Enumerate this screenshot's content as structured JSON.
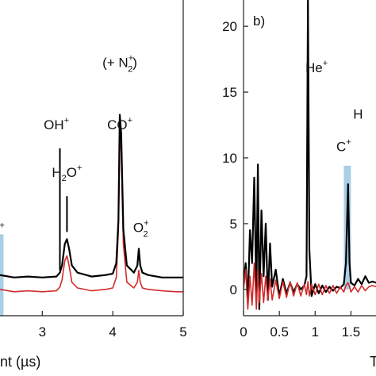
{
  "chart_data": [
    {
      "type": "line",
      "panel_label": "",
      "xlabel": "nt (µs)",
      "ylabel": "",
      "xlim": [
        2.4,
        5.0
      ],
      "ylim": [
        -0.6,
        6.0
      ],
      "x_ticks": [
        "3",
        "4",
        "5"
      ],
      "x_tick_values": [
        3,
        4,
        5
      ],
      "grid": false,
      "legend": "none",
      "colors": {
        "black_series": "#000000",
        "red_series": "#d42a2a",
        "highlight": "#a9cfe6"
      },
      "highlight_x": [
        2.4,
        2.45
      ],
      "series": [
        {
          "color": "#000000",
          "x": [
            2.4,
            2.6,
            2.8,
            3.0,
            3.2,
            3.25,
            3.28,
            3.32,
            3.35,
            3.38,
            3.42,
            3.5,
            3.7,
            3.9,
            4.0,
            4.05,
            4.08,
            4.1,
            4.12,
            4.15,
            4.2,
            4.3,
            4.35,
            4.37,
            4.39,
            4.42,
            4.5,
            4.7,
            4.9,
            5.0
          ],
          "y": [
            0.25,
            0.2,
            0.22,
            0.2,
            0.22,
            0.3,
            0.45,
            0.9,
            1.0,
            0.8,
            0.45,
            0.3,
            0.22,
            0.25,
            0.28,
            0.5,
            1.4,
            3.6,
            3.2,
            1.2,
            0.45,
            0.3,
            0.45,
            0.8,
            0.45,
            0.3,
            0.25,
            0.2,
            0.2,
            0.2
          ]
        },
        {
          "color": "#d42a2a",
          "x": [
            2.4,
            2.6,
            2.8,
            3.0,
            3.2,
            3.25,
            3.28,
            3.32,
            3.35,
            3.38,
            3.42,
            3.5,
            3.7,
            3.9,
            4.0,
            4.05,
            4.08,
            4.1,
            4.12,
            4.15,
            4.2,
            4.3,
            4.35,
            4.37,
            4.39,
            4.42,
            4.5,
            4.7,
            4.9,
            5.0
          ],
          "y": [
            -0.05,
            -0.1,
            -0.08,
            -0.1,
            -0.08,
            0.0,
            0.15,
            0.55,
            0.65,
            0.45,
            0.1,
            -0.02,
            -0.08,
            -0.05,
            -0.02,
            0.2,
            1.2,
            3.2,
            2.8,
            0.9,
            0.1,
            -0.02,
            0.1,
            0.35,
            0.1,
            -0.02,
            -0.05,
            -0.08,
            -0.1,
            -0.1
          ]
        }
      ],
      "annotations": [
        {
          "text": "(+ N",
          "sub": "2",
          "sup": "+",
          "close": ")",
          "x": 4.1,
          "y": 4.6
        },
        {
          "text": "OH",
          "sup": "+",
          "x": 3.2,
          "y": 3.3
        },
        {
          "text": "CO",
          "sup": "+",
          "x": 4.1,
          "y": 3.3
        },
        {
          "text": "H",
          "sub": "2",
          "mid": "O",
          "sup": "+",
          "x": 3.35,
          "y": 2.3
        },
        {
          "text": "O",
          "sub": "2",
          "sup": "+",
          "x": 4.4,
          "y": 1.15
        },
        {
          "text": "",
          "sup": "+",
          "x": 2.43,
          "y": 1.1
        }
      ],
      "marker_lines": [
        {
          "x": 3.25,
          "y0": 0.35,
          "y1": 2.9
        },
        {
          "x": 3.35,
          "y0": 1.15,
          "y1": 1.9
        }
      ]
    },
    {
      "type": "line",
      "panel_label": "b)",
      "xlabel": "T",
      "ylabel": "",
      "xlim": [
        0.0,
        1.85
      ],
      "ylim": [
        -2.0,
        22.0
      ],
      "x_ticks": [
        "0",
        "0.5",
        "1",
        "1.5"
      ],
      "x_tick_values": [
        0,
        0.5,
        1,
        1.5
      ],
      "y_ticks": [
        "0",
        "5",
        "10",
        "15",
        "20"
      ],
      "y_tick_values": [
        0,
        5,
        10,
        15,
        20
      ],
      "grid": false,
      "legend": "none",
      "colors": {
        "black_series": "#000000",
        "red_series": "#d42a2a",
        "highlight": "#a9cfe6"
      },
      "highlight_x": [
        1.4,
        1.5
      ],
      "highlight_y": [
        0.0,
        9.4
      ],
      "series": [
        {
          "color": "#000000",
          "x": [
            0.0,
            0.03,
            0.06,
            0.09,
            0.12,
            0.15,
            0.18,
            0.2,
            0.22,
            0.25,
            0.28,
            0.31,
            0.34,
            0.37,
            0.4,
            0.45,
            0.5,
            0.55,
            0.6,
            0.65,
            0.7,
            0.75,
            0.8,
            0.85,
            0.88,
            0.9,
            0.92,
            0.95,
            1.0,
            1.05,
            1.1,
            1.15,
            1.2,
            1.25,
            1.3,
            1.35,
            1.4,
            1.43,
            1.46,
            1.48,
            1.5,
            1.55,
            1.6,
            1.65,
            1.7,
            1.75,
            1.8,
            1.85
          ],
          "y": [
            0.5,
            2.0,
            -1.0,
            4.5,
            2.0,
            8.5,
            -0.5,
            9.5,
            -1.5,
            6.0,
            1.0,
            5.0,
            -0.8,
            3.5,
            0.2,
            1.5,
            -0.5,
            0.8,
            -0.3,
            0.5,
            -0.2,
            0.4,
            0.0,
            0.3,
            1.0,
            22.0,
            3.0,
            -0.5,
            0.4,
            -0.3,
            0.3,
            -0.2,
            0.2,
            -0.1,
            0.2,
            0.1,
            0.4,
            2.0,
            8.0,
            2.0,
            0.5,
            0.3,
            0.8,
            0.4,
            1.0,
            0.5,
            0.6,
            0.5
          ]
        },
        {
          "color": "#d42a2a",
          "x": [
            0.0,
            0.03,
            0.06,
            0.09,
            0.12,
            0.15,
            0.18,
            0.2,
            0.22,
            0.25,
            0.28,
            0.31,
            0.34,
            0.37,
            0.4,
            0.45,
            0.5,
            0.55,
            0.6,
            0.65,
            0.7,
            0.75,
            0.8,
            0.85,
            0.88,
            0.9,
            0.92,
            0.95,
            1.0,
            1.05,
            1.1,
            1.15,
            1.2,
            1.25,
            1.3,
            1.35,
            1.4,
            1.43,
            1.46,
            1.48,
            1.5,
            1.55,
            1.6,
            1.65,
            1.7,
            1.75,
            1.8,
            1.85
          ],
          "y": [
            0.0,
            1.5,
            -1.5,
            1.0,
            -1.2,
            2.0,
            -1.5,
            1.5,
            -1.0,
            1.2,
            -1.0,
            1.0,
            -0.8,
            0.8,
            -0.8,
            0.7,
            -0.7,
            0.6,
            -0.6,
            0.6,
            -0.5,
            0.5,
            -0.5,
            0.4,
            -0.4,
            0.6,
            -0.5,
            0.4,
            -0.4,
            0.4,
            -0.4,
            0.3,
            -0.3,
            0.3,
            -0.3,
            0.2,
            -0.2,
            0.3,
            0.5,
            0.2,
            -0.2,
            0.2,
            -0.2,
            0.3,
            -0.1,
            0.2,
            0.3,
            0.2
          ]
        }
      ],
      "annotations": [
        {
          "text": "He",
          "sup": "+",
          "x": 1.02,
          "y": 16.5
        },
        {
          "text": "H",
          "sup": "",
          "x": 1.6,
          "y": 13.0
        },
        {
          "text": "C",
          "sup": "+",
          "x": 1.4,
          "y": 10.5
        }
      ]
    }
  ]
}
